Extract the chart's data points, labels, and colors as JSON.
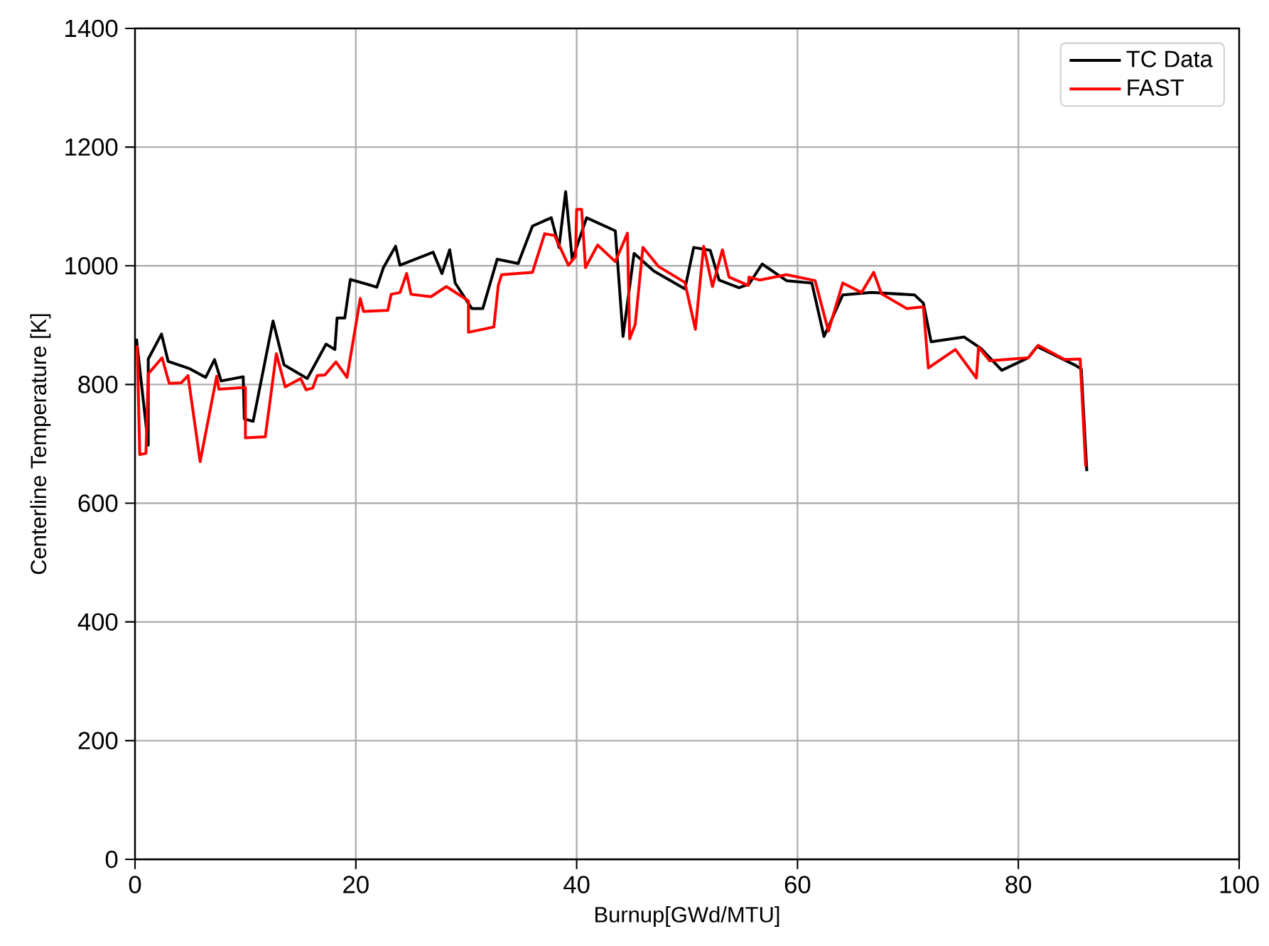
{
  "chart_data": {
    "type": "line",
    "xlabel": "Burnup[GWd/MTU]",
    "ylabel": "Centerline Temperature [K]",
    "xlim": [
      0,
      100
    ],
    "ylim": [
      0,
      1400
    ],
    "xticks": [
      0,
      20,
      40,
      60,
      80,
      100
    ],
    "yticks": [
      0,
      200,
      400,
      600,
      800,
      1000,
      1200,
      1400
    ],
    "grid": true,
    "legend": "top right",
    "marker": "none",
    "line_style": "solid",
    "series": [
      {
        "name": "TC Data",
        "color": "#000000",
        "x": [
          0.13,
          1.2,
          1.2,
          2.4,
          3.0,
          4.9,
          6.4,
          7.2,
          7.8,
          9.8,
          9.9,
          10.7,
          12.5,
          13.5,
          15.6,
          17.3,
          18.1,
          18.3,
          19.0,
          19.5,
          21.2,
          21.9,
          22.5,
          23.6,
          24.0,
          27.0,
          27.8,
          28.5,
          29.0,
          30.5,
          31.5,
          32.8,
          34.7,
          36.0,
          37.7,
          38.4,
          39.0,
          39.6,
          40.9,
          43.5,
          44.2,
          45.2,
          47.0,
          49.8,
          50.6,
          52.1,
          52.9,
          54.7,
          55.6,
          56.8,
          59.0,
          61.3,
          62.4,
          64.1,
          66.7,
          70.6,
          71.4,
          72.1,
          75.1,
          76.6,
          78.5,
          80.9,
          81.7,
          85.2,
          85.7,
          86.2
        ],
        "values": [
          877,
          698,
          843,
          885,
          839,
          827,
          812,
          842,
          806,
          813,
          742,
          738,
          907,
          833,
          810,
          868,
          859,
          912,
          912,
          977,
          968,
          964,
          997,
          1033,
          1001,
          1023,
          987,
          1027,
          971,
          928,
          928,
          1011,
          1004,
          1067,
          1081,
          1031,
          1125,
          1010,
          1081,
          1059,
          881,
          1021,
          991,
          961,
          1031,
          1026,
          976,
          963,
          969,
          1003,
          975,
          971,
          881,
          951,
          955,
          951,
          937,
          872,
          880,
          861,
          824,
          845,
          864,
          832,
          826,
          654
        ]
      },
      {
        "name": "FAST",
        "color": "#ff0000",
        "x": [
          0.2,
          0.43,
          0.99,
          1.2,
          2.45,
          3.1,
          4.2,
          4.8,
          5.9,
          7.4,
          7.6,
          10.0,
          10.0,
          11.8,
          12.8,
          13.6,
          15.0,
          15.5,
          16.1,
          16.5,
          17.2,
          18.2,
          19.2,
          20.4,
          20.7,
          22.9,
          23.2,
          24.0,
          24.6,
          25.0,
          26.8,
          28.2,
          29.2,
          30.2,
          30.2,
          32.5,
          32.9,
          33.2,
          36.0,
          37.1,
          38.0,
          39.25,
          39.9,
          40.0,
          40.45,
          40.8,
          41.9,
          43.5,
          44.6,
          44.8,
          45.3,
          46.0,
          47.4,
          49.8,
          50.75,
          51.5,
          52.3,
          53.2,
          53.8,
          55.55,
          55.6,
          56.6,
          59.0,
          61.6,
          62.8,
          64.1,
          65.8,
          66.9,
          67.6,
          69.9,
          71.4,
          71.85,
          74.3,
          76.2,
          76.4,
          77.4,
          80.9,
          81.8,
          84.2,
          85.6,
          86.1
        ],
        "values": [
          866,
          682,
          684,
          818,
          845,
          802,
          803,
          815,
          670,
          814,
          792,
          795,
          710,
          712,
          852,
          796,
          810,
          791,
          794,
          815,
          816,
          838,
          812,
          945,
          923,
          925,
          952,
          955,
          987,
          952,
          948,
          965,
          953,
          941,
          888,
          897,
          967,
          985,
          989,
          1054,
          1051,
          1001,
          1016,
          1095,
          1095,
          997,
          1035,
          1007,
          1055,
          877,
          901,
          1031,
          999,
          972,
          893,
          1033,
          965,
          1027,
          981,
          967,
          981,
          976,
          985,
          975,
          890,
          971,
          955,
          989,
          953,
          928,
          931,
          828,
          859,
          811,
          863,
          840,
          845,
          866,
          842,
          843,
          662
        ]
      }
    ]
  }
}
